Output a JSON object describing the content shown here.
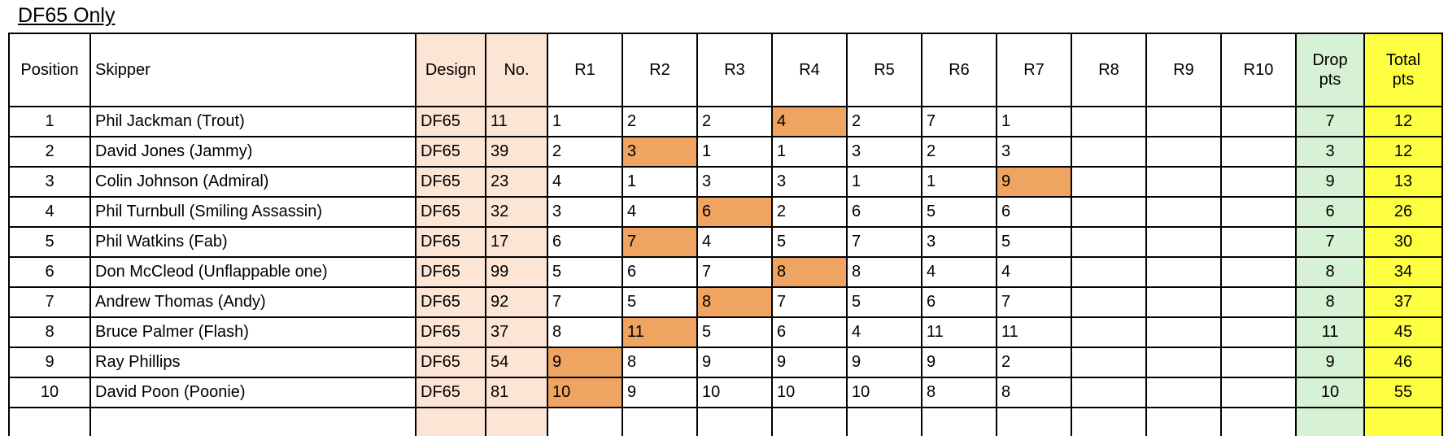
{
  "title": "DF65 Only",
  "colors": {
    "design_no_bg": "#fce5d5",
    "drop_bg": "#d6f1d3",
    "total_bg": "#ffff42",
    "race_highlight_bg": "#f0a461",
    "border": "#000000",
    "cell_bg": "#ffffff"
  },
  "table": {
    "columns": [
      {
        "key": "position",
        "label": "Position",
        "align": "center"
      },
      {
        "key": "skipper",
        "label": "Skipper",
        "align": "left"
      },
      {
        "key": "design",
        "label": "Design",
        "align": "left",
        "bg": "design_no_bg"
      },
      {
        "key": "no",
        "label": "No.",
        "align": "left",
        "bg": "design_no_bg"
      },
      {
        "key": "r1",
        "label": "R1",
        "align": "left"
      },
      {
        "key": "r2",
        "label": "R2",
        "align": "left"
      },
      {
        "key": "r3",
        "label": "R3",
        "align": "left"
      },
      {
        "key": "r4",
        "label": "R4",
        "align": "left"
      },
      {
        "key": "r5",
        "label": "R5",
        "align": "left"
      },
      {
        "key": "r6",
        "label": "R6",
        "align": "left"
      },
      {
        "key": "r7",
        "label": "R7",
        "align": "left"
      },
      {
        "key": "r8",
        "label": "R8",
        "align": "left"
      },
      {
        "key": "r9",
        "label": "R9",
        "align": "left"
      },
      {
        "key": "r10",
        "label": "R10",
        "align": "left"
      },
      {
        "key": "drop",
        "label": "Drop\npts",
        "align": "center",
        "bg": "drop_bg"
      },
      {
        "key": "total",
        "label": "Total\npts",
        "align": "center",
        "bg": "total_bg"
      }
    ],
    "rows": [
      {
        "position": "1",
        "skipper": "Phil Jackman (Trout)",
        "design": "DF65",
        "no": "11",
        "races": [
          "1",
          "2",
          "2",
          "4",
          "2",
          "7",
          "1",
          "",
          "",
          ""
        ],
        "highlighted_race": 4,
        "drop": "7",
        "total": "12"
      },
      {
        "position": "2",
        "skipper": "David Jones (Jammy)",
        "design": "DF65",
        "no": "39",
        "races": [
          "2",
          "3",
          "1",
          "1",
          "3",
          "2",
          "3",
          "",
          "",
          ""
        ],
        "highlighted_race": 2,
        "drop": "3",
        "total": "12"
      },
      {
        "position": "3",
        "skipper": "Colin Johnson (Admiral)",
        "design": "DF65",
        "no": "23",
        "races": [
          "4",
          "1",
          "3",
          "3",
          "1",
          "1",
          "9",
          "",
          "",
          ""
        ],
        "highlighted_race": 7,
        "drop": "9",
        "total": "13"
      },
      {
        "position": "4",
        "skipper": "Phil Turnbull (Smiling Assassin)",
        "design": "DF65",
        "no": "32",
        "races": [
          "3",
          "4",
          "6",
          "2",
          "6",
          "5",
          "6",
          "",
          "",
          ""
        ],
        "highlighted_race": 3,
        "drop": "6",
        "total": "26"
      },
      {
        "position": "5",
        "skipper": "Phil Watkins (Fab)",
        "design": "DF65",
        "no": "17",
        "races": [
          "6",
          "7",
          "4",
          "5",
          "7",
          "3",
          "5",
          "",
          "",
          ""
        ],
        "highlighted_race": 2,
        "drop": "7",
        "total": "30"
      },
      {
        "position": "6",
        "skipper": "Don McCleod (Unflappable one)",
        "design": "DF65",
        "no": "99",
        "races": [
          "5",
          "6",
          "7",
          "8",
          "8",
          "4",
          "4",
          "",
          "",
          ""
        ],
        "highlighted_race": 4,
        "drop": "8",
        "total": "34"
      },
      {
        "position": "7",
        "skipper": "Andrew Thomas (Andy)",
        "design": "DF65",
        "no": "92",
        "races": [
          "7",
          "5",
          "8",
          "7",
          "5",
          "6",
          "7",
          "",
          "",
          ""
        ],
        "highlighted_race": 3,
        "drop": "8",
        "total": "37"
      },
      {
        "position": "8",
        "skipper": "Bruce Palmer (Flash)",
        "design": "DF65",
        "no": "37",
        "races": [
          "8",
          "11",
          "5",
          "6",
          "4",
          "11",
          "11",
          "",
          "",
          ""
        ],
        "highlighted_race": 2,
        "drop": "11",
        "total": "45"
      },
      {
        "position": "9",
        "skipper": "Ray Phillips",
        "design": "DF65",
        "no": "54",
        "races": [
          "9",
          "8",
          "9",
          "9",
          "9",
          "9",
          "2",
          "",
          "",
          ""
        ],
        "highlighted_race": 1,
        "drop": "9",
        "total": "46"
      },
      {
        "position": "10",
        "skipper": "David Poon (Poonie)",
        "design": "DF65",
        "no": "81",
        "races": [
          "10",
          "9",
          "10",
          "10",
          "10",
          "8",
          "8",
          "",
          "",
          ""
        ],
        "highlighted_race": 1,
        "drop": "10",
        "total": "55"
      }
    ],
    "empty_row": {
      "position": "",
      "skipper": "",
      "design": "",
      "no": "",
      "races": [
        "",
        "",
        "",
        "",
        "",
        "",
        "",
        "",
        "",
        ""
      ],
      "highlighted_race": 0,
      "drop": "",
      "total": ""
    }
  }
}
